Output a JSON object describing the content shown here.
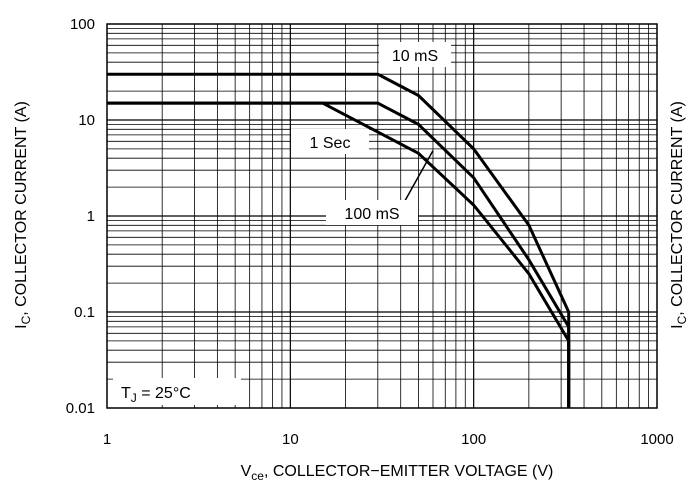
{
  "chart_data": {
    "type": "line",
    "xscale": "log",
    "yscale": "log",
    "xlim": [
      1,
      1000
    ],
    "ylim": [
      0.01,
      100
    ],
    "grid": true,
    "x_ticks": [
      "1",
      "10",
      "100",
      "1000"
    ],
    "y_ticks": [
      "0.01",
      "0.1",
      "1",
      "10",
      "100"
    ],
    "xlabel": {
      "main": "V",
      "sub": "ce",
      "rest": ", COLLECTOR−EMITTER VOLTAGE (V)"
    },
    "ylabel": {
      "main": "I",
      "sub": "C",
      "rest": ", COLLECTOR CURRENT (A)"
    },
    "series": [
      {
        "name": "10 mS",
        "points": [
          [
            1,
            30
          ],
          [
            30,
            30
          ],
          [
            50,
            18
          ],
          [
            100,
            5
          ],
          [
            200,
            0.8
          ],
          [
            330,
            0.1
          ],
          [
            330,
            0.01
          ]
        ]
      },
      {
        "name": "100 mS",
        "points": [
          [
            1,
            15
          ],
          [
            30,
            15
          ],
          [
            50,
            9
          ],
          [
            100,
            2.5
          ],
          [
            200,
            0.35
          ],
          [
            330,
            0.07
          ],
          [
            330,
            0.01
          ]
        ]
      },
      {
        "name": "1 Sec",
        "points": [
          [
            1,
            15
          ],
          [
            15,
            15
          ],
          [
            50,
            4.5
          ],
          [
            100,
            1.3
          ],
          [
            200,
            0.25
          ],
          [
            330,
            0.05
          ],
          [
            330,
            0.01
          ]
        ]
      }
    ],
    "annotations": {
      "label_10ms": "10 mS",
      "label_1sec": "1 Sec",
      "label_100ms": "100 mS",
      "tj": {
        "main": "T",
        "sub": "J",
        "rest": " = 25°C"
      }
    }
  }
}
